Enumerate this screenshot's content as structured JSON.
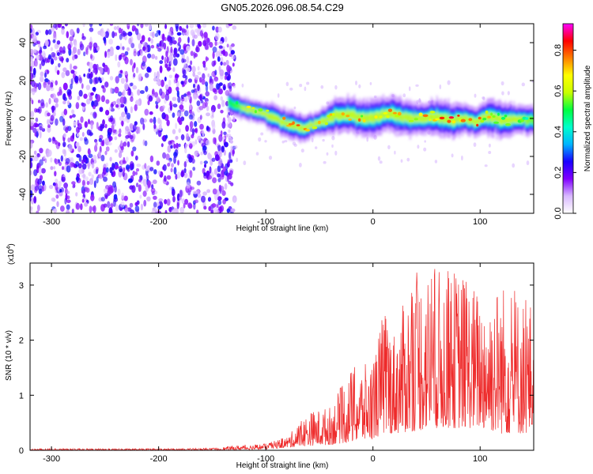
{
  "chart_data": [
    {
      "type": "heatmap",
      "title": "GN05.2026.096.08.54.C29",
      "xlabel": "Height of straight line (km)",
      "ylabel": "Frequency (Hz)",
      "xlim": [
        -320,
        150
      ],
      "ylim": [
        -50,
        50
      ],
      "x_ticks": [
        -300,
        -200,
        -100,
        0,
        100
      ],
      "y_ticks": [
        -40,
        -20,
        0,
        20,
        40
      ],
      "colorbar": {
        "label": "Normalized spectral amplitude",
        "range": [
          0,
          0.93
        ],
        "ticks": [
          0.0,
          0.2,
          0.4,
          0.6,
          0.8
        ],
        "colormap": [
          "#ffffff",
          "#d8b8ff",
          "#8000ff",
          "#1a00ff",
          "#00b4ff",
          "#00ffcc",
          "#00ff40",
          "#c8ff00",
          "#ffff00",
          "#ff8000",
          "#ff0000",
          "#ff00ff"
        ]
      },
      "noise_region_x": [
        -320,
        -135
      ],
      "signal_track": {
        "x": [
          -135,
          -125,
          -115,
          -105,
          -95,
          -85,
          -75,
          -65,
          -55,
          -45,
          -35,
          -25,
          -15,
          -5,
          5,
          15,
          25,
          35,
          45,
          55,
          65,
          75,
          85,
          95,
          105,
          115,
          125,
          135,
          150
        ],
        "center_freq": [
          9,
          6,
          4,
          3,
          1,
          -2,
          -4,
          -5,
          -3,
          -1,
          2,
          2,
          1,
          0,
          1,
          3,
          1,
          0,
          0,
          1,
          0,
          -1,
          0,
          -2,
          1,
          0,
          -1,
          0,
          -1
        ],
        "half_width": [
          3,
          3,
          3,
          3,
          4,
          4,
          4,
          4,
          3,
          4,
          5,
          5,
          5,
          5,
          5,
          5,
          5,
          5,
          4,
          5,
          5,
          5,
          4,
          4,
          5,
          5,
          5,
          4,
          4
        ],
        "peak_amplitude": [
          0.5,
          0.55,
          0.7,
          0.75,
          0.9,
          0.8,
          0.85,
          0.8,
          0.8,
          0.75,
          0.8,
          0.75,
          0.8,
          0.7,
          0.65,
          0.8,
          0.7,
          0.7,
          0.75,
          0.75,
          0.8,
          0.85,
          0.9,
          0.85,
          0.7,
          0.7,
          0.65,
          0.6,
          0.55
        ]
      }
    },
    {
      "type": "line",
      "title": "",
      "xlabel": "Height of straight line (km)",
      "ylabel": "SNR (10 * v/v)",
      "y_scale_note": "(x10",
      "y_scale_exp": "4",
      "xlim": [
        -320,
        150
      ],
      "ylim": [
        0,
        3.4
      ],
      "x_ticks": [
        -300,
        -200,
        -100,
        0,
        100
      ],
      "y_ticks": [
        0,
        1,
        2,
        3
      ],
      "series": [
        {
          "color": "#ee2a2a",
          "envelope_x": [
            -320,
            -200,
            -150,
            -120,
            -100,
            -80,
            -60,
            -40,
            -20,
            0,
            10,
            20,
            40,
            60,
            80,
            100,
            120,
            140,
            150
          ],
          "envelope_high": [
            0.03,
            0.03,
            0.04,
            0.1,
            0.12,
            0.25,
            0.7,
            0.8,
            1.5,
            1.6,
            2.6,
            2.2,
            3.3,
            3.3,
            3.3,
            2.9,
            3.1,
            2.8,
            2.7
          ],
          "envelope_low": [
            0.0,
            0.0,
            0.0,
            0.01,
            0.02,
            0.05,
            0.08,
            0.1,
            0.15,
            0.2,
            0.3,
            0.3,
            0.35,
            0.4,
            0.4,
            0.4,
            0.3,
            0.3,
            0.3
          ]
        }
      ]
    }
  ]
}
